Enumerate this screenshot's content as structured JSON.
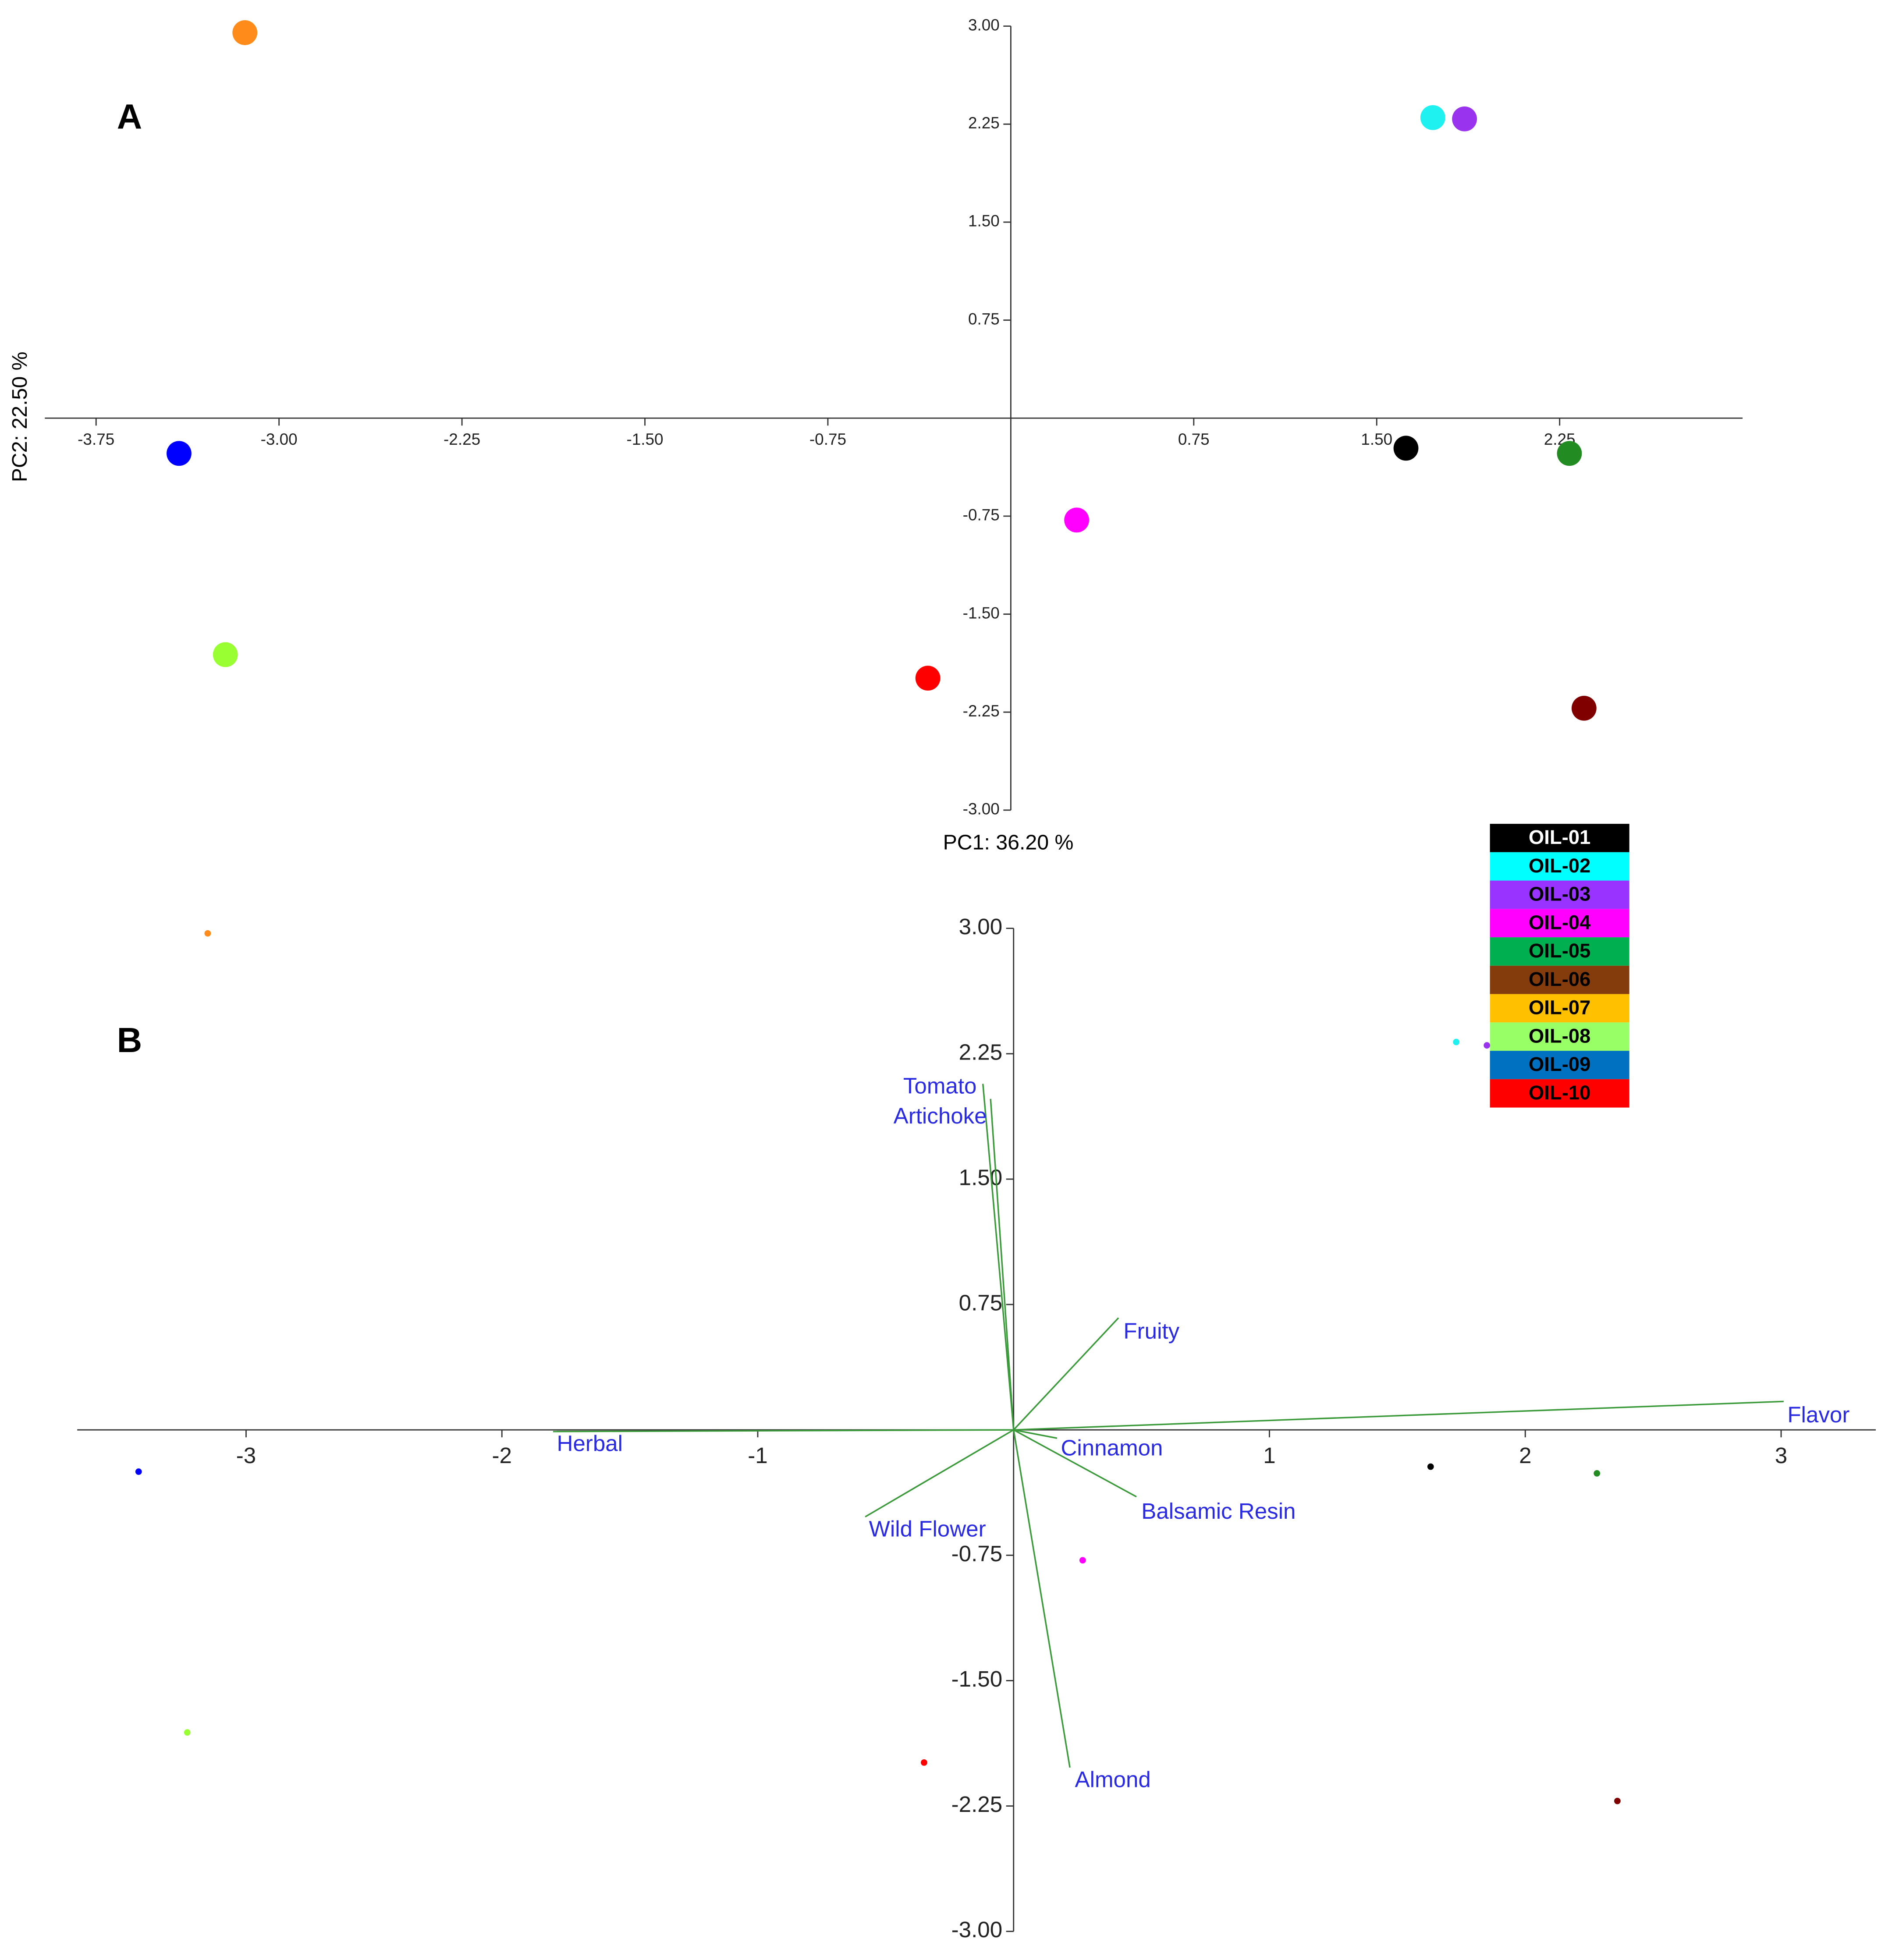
{
  "chart_data": [
    {
      "type": "scatter",
      "panel_label": "A",
      "x_label": "PC1: 36.20 %",
      "y_label": "PC2: 22.50 %",
      "xlim": [
        -3.96,
        3.0
      ],
      "ylim": [
        -3,
        3
      ],
      "xticks": [
        -3.75,
        {
          "value": -3,
          "label": "-3.00"
        },
        -2.25,
        {
          "value": -1.5,
          "label": "-1.50"
        },
        -0.75,
        0.75,
        {
          "value": 1.5,
          "label": "1.50"
        },
        2.25
      ],
      "yticks": [
        {
          "value": 3,
          "label": "3.00"
        },
        2.25,
        {
          "value": 1.5,
          "label": "1.50"
        },
        0.75,
        -0.75,
        {
          "value": -1.5,
          "label": "-1.50"
        },
        -2.25,
        {
          "value": -3,
          "label": "-3.00"
        }
      ],
      "series": [
        {
          "name": "OIL-01",
          "color": "#000000",
          "legend_color": "#000000",
          "x": [
            1.62
          ],
          "values": [
            -0.23
          ]
        },
        {
          "name": "OIL-02",
          "color": "#1ff0f0",
          "legend_color": "#00ffff",
          "x": [
            1.73
          ],
          "values": [
            2.3
          ]
        },
        {
          "name": "OIL-03",
          "color": "#9933ee",
          "legend_color": "#9933ff",
          "x": [
            1.86
          ],
          "values": [
            2.29
          ]
        },
        {
          "name": "OIL-04",
          "color": "#ff00ff",
          "legend_color": "#ff00ff",
          "x": [
            0.27
          ],
          "values": [
            -0.78
          ]
        },
        {
          "name": "OIL-05",
          "color": "#228b22",
          "legend_color": "#00b050",
          "x": [
            2.29
          ],
          "values": [
            -0.27
          ]
        },
        {
          "name": "OIL-06",
          "color": "#800000",
          "legend_color": "#843c0c",
          "x": [
            2.35
          ],
          "values": [
            -2.22
          ]
        },
        {
          "name": "OIL-07",
          "color": "#ff8c1a",
          "legend_color": "#ffc000",
          "x": [
            -3.14
          ],
          "values": [
            2.95
          ]
        },
        {
          "name": "OIL-08",
          "color": "#99ff33",
          "legend_color": "#99ff66",
          "x": [
            -3.22
          ],
          "values": [
            -1.81
          ]
        },
        {
          "name": "OIL-09",
          "color": "#0000ff",
          "legend_color": "#0070c0",
          "x": [
            -3.41
          ],
          "values": [
            -0.27
          ]
        },
        {
          "name": "OIL-10",
          "color": "#ff0000",
          "legend_color": "#ff0000",
          "x": [
            -0.34
          ],
          "values": [
            -1.99
          ]
        }
      ]
    },
    {
      "type": "biplot",
      "panel_label": "B",
      "xlim": [
        -3.66,
        3.37
      ],
      "ylim": [
        -3,
        3
      ],
      "xticks": [
        -3,
        -2,
        -1,
        1,
        2,
        3
      ],
      "yticks": [
        {
          "value": 3,
          "label": "3.00"
        },
        2.25,
        {
          "value": 1.5,
          "label": "1.50"
        },
        0.75,
        -0.75,
        {
          "value": -1.5,
          "label": "-1.50"
        },
        -2.25,
        {
          "value": -3,
          "label": "-3.00"
        }
      ],
      "series": [
        {
          "color": "#000000",
          "x": [
            1.63
          ],
          "values": [
            -0.22
          ]
        },
        {
          "color": "#1ff0f0",
          "x": [
            1.73
          ],
          "values": [
            2.32
          ]
        },
        {
          "color": "#9933ee",
          "x": [
            1.85
          ],
          "values": [
            2.3
          ]
        },
        {
          "color": "#ff00ff",
          "x": [
            0.27
          ],
          "values": [
            -0.78
          ]
        },
        {
          "color": "#228b22",
          "x": [
            2.28
          ],
          "values": [
            -0.26
          ]
        },
        {
          "color": "#800000",
          "x": [
            2.36
          ],
          "values": [
            -2.22
          ]
        },
        {
          "color": "#ff8c1a",
          "x": [
            -3.15
          ],
          "values": [
            2.97
          ]
        },
        {
          "color": "#99ff33",
          "x": [
            -3.23
          ],
          "values": [
            -1.81
          ]
        },
        {
          "color": "#0000ff",
          "x": [
            -3.42
          ],
          "values": [
            -0.25
          ]
        },
        {
          "color": "#ff0000",
          "x": [
            -0.35
          ],
          "values": [
            -1.99
          ]
        }
      ],
      "loadings": {
        "color": "#3a9a3a",
        "label_color": "#2a2ae0",
        "labels": [
          "Tomato",
          "Artichoke",
          "Fruity",
          "Flavor",
          "Herbal",
          "Cinnamon",
          "Balsamic Resin",
          "Wild Flower",
          "Almond"
        ],
        "x": [
          -0.12,
          -0.09,
          0.41,
          3.01,
          -1.8,
          0.17,
          0.48,
          -0.58,
          0.22
        ],
        "y": [
          2.07,
          1.98,
          0.67,
          0.17,
          -0.01,
          -0.05,
          -0.4,
          -0.52,
          -2.02
        ]
      }
    }
  ]
}
